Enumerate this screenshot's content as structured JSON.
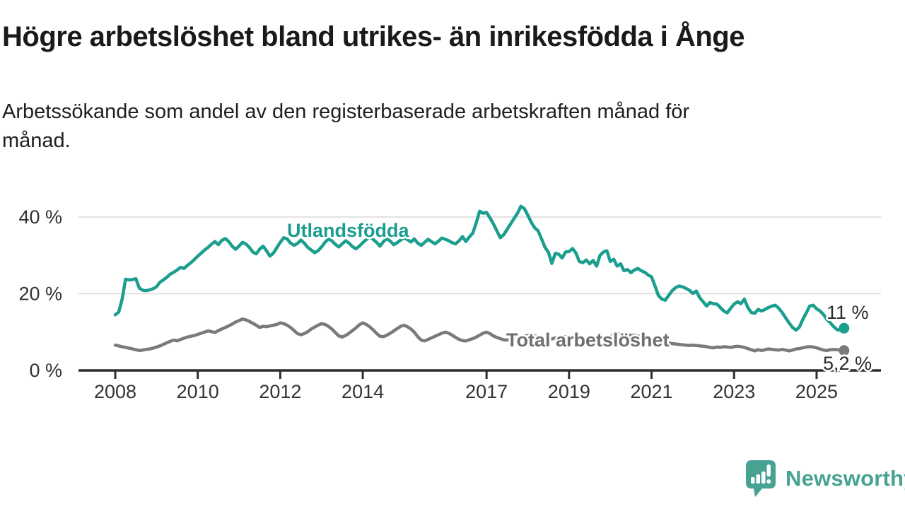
{
  "header": {
    "title": "Högre arbetslöshet bland utrikes- än inrikesfödda i Ånge",
    "subtitle": "Arbetssökande som andel av den registerbaserade arbetskraften månad för månad."
  },
  "footer": {
    "brand": "Newsworthy"
  },
  "colors": {
    "teal": "#1b9e8e",
    "gray": "#7a7a7a",
    "label_gray": "#6f6f6f",
    "grid": "#d9d9d9",
    "axis": "#2e2e2e",
    "tick_label": "#333333",
    "end_label": "#2b2b2b",
    "logo_teal": "#46a292"
  },
  "chart_data": {
    "type": "line",
    "title": "Högre arbetslöshet bland utrikes- än inrikesfödda i Ånge",
    "subtitle": "Arbetssökande som andel av den registerbaserade arbetskraften månad för månad.",
    "unit": "%",
    "frequency": "monthly",
    "x_start": "2008-01",
    "x_end": "2025-09",
    "ylim": [
      0,
      45
    ],
    "grid": "horizontal",
    "legend": "inline-labels",
    "y_ticks": [
      {
        "value": 0,
        "label": "0 %"
      },
      {
        "value": 20,
        "label": "20 %"
      },
      {
        "value": 40,
        "label": "40 %"
      }
    ],
    "x_ticks": [
      {
        "year": 2008,
        "label": "2008"
      },
      {
        "year": 2010,
        "label": "2010"
      },
      {
        "year": 2012,
        "label": "2012"
      },
      {
        "year": 2014,
        "label": "2014"
      },
      {
        "year": 2017,
        "label": "2017"
      },
      {
        "year": 2019,
        "label": "2019"
      },
      {
        "year": 2021,
        "label": "2021"
      },
      {
        "year": 2023,
        "label": "2023"
      },
      {
        "year": 2025,
        "label": "2025"
      }
    ],
    "series": [
      {
        "name": "Utlandsfödda",
        "color": "#1b9e8e",
        "end_label": "11 %",
        "end_value": 11.0,
        "values": [
          14.5,
          15.2,
          18.5,
          23.8,
          23.6,
          23.7,
          23.9,
          21.5,
          20.9,
          20.8,
          21.0,
          21.3,
          21.8,
          23.0,
          23.6,
          24.3,
          25.1,
          25.6,
          26.2,
          26.9,
          26.6,
          27.4,
          28.1,
          28.9,
          29.8,
          30.6,
          31.4,
          32.1,
          32.9,
          33.6,
          32.8,
          33.9,
          34.4,
          33.6,
          32.4,
          31.6,
          32.4,
          33.4,
          33.0,
          32.1,
          30.9,
          30.4,
          31.6,
          32.4,
          31.2,
          29.8,
          30.6,
          32.0,
          33.4,
          34.6,
          34.3,
          33.2,
          32.6,
          33.1,
          34.0,
          33.2,
          32.1,
          31.4,
          30.7,
          31.2,
          32.2,
          33.4,
          34.3,
          33.8,
          32.9,
          32.2,
          33.0,
          33.8,
          33.2,
          32.3,
          31.7,
          32.4,
          33.3,
          34.1,
          34.8,
          34.2,
          33.4,
          32.4,
          33.6,
          34.4,
          33.7,
          32.8,
          33.3,
          34.0,
          34.6,
          34.1,
          33.5,
          34.3,
          33.2,
          32.6,
          33.4,
          34.2,
          33.6,
          33.0,
          33.7,
          34.5,
          34.2,
          33.8,
          33.3,
          33.0,
          33.8,
          34.9,
          33.6,
          34.8,
          35.8,
          38.5,
          41.5,
          41.0,
          41.2,
          39.8,
          38.2,
          36.4,
          34.6,
          35.4,
          36.8,
          38.2,
          39.6,
          41.0,
          42.8,
          42.2,
          40.5,
          38.6,
          37.2,
          36.4,
          34.3,
          32.1,
          30.8,
          27.9,
          30.5,
          30.3,
          29.3,
          30.9,
          31.0,
          31.8,
          30.6,
          28.4,
          28.1,
          28.8,
          27.8,
          28.7,
          27.2,
          30.0,
          30.9,
          31.2,
          28.4,
          29.0,
          27.2,
          27.8,
          26.0,
          26.3,
          25.5,
          26.2,
          26.6,
          26.0,
          25.6,
          24.9,
          24.4,
          22.0,
          19.5,
          18.6,
          18.3,
          19.6,
          20.8,
          21.6,
          22.0,
          21.8,
          21.4,
          20.9,
          20.1,
          20.7,
          19.0,
          17.9,
          16.8,
          17.7,
          17.4,
          17.3,
          16.4,
          15.5,
          15.0,
          16.2,
          17.3,
          17.9,
          17.4,
          18.6,
          16.4,
          15.1,
          14.9,
          15.9,
          15.5,
          15.9,
          16.4,
          16.8,
          17.0,
          16.2,
          15.1,
          13.7,
          12.4,
          11.2,
          10.5,
          11.3,
          13.3,
          15.0,
          16.8,
          17.0,
          16.1,
          15.5,
          14.6,
          13.3,
          12.4,
          11.4,
          10.6,
          10.5,
          11.0
        ]
      },
      {
        "name": "Total arbetslöshet",
        "color": "#7a7a7a",
        "end_label": "5,2 %",
        "end_value": 5.2,
        "values": [
          6.6,
          6.4,
          6.2,
          6.0,
          5.8,
          5.6,
          5.4,
          5.2,
          5.3,
          5.5,
          5.6,
          5.8,
          6.1,
          6.4,
          6.8,
          7.2,
          7.6,
          7.9,
          7.7,
          8.1,
          8.4,
          8.7,
          8.9,
          9.1,
          9.4,
          9.7,
          10.0,
          10.3,
          10.1,
          9.9,
          10.4,
          10.8,
          11.2,
          11.6,
          12.1,
          12.6,
          13.0,
          13.4,
          13.2,
          12.8,
          12.3,
          11.8,
          11.2,
          11.5,
          11.4,
          11.6,
          11.8,
          12.0,
          12.4,
          12.2,
          11.8,
          11.2,
          10.4,
          9.6,
          9.3,
          9.6,
          10.1,
          10.8,
          11.3,
          11.8,
          12.2,
          12.0,
          11.5,
          10.8,
          9.9,
          9.0,
          8.7,
          9.1,
          9.7,
          10.4,
          11.1,
          11.9,
          12.4,
          12.0,
          11.4,
          10.6,
          9.7,
          8.9,
          8.8,
          9.2,
          9.7,
          10.3,
          10.9,
          11.5,
          11.8,
          11.4,
          10.8,
          10.0,
          8.8,
          7.9,
          7.7,
          8.1,
          8.5,
          8.9,
          9.3,
          9.7,
          10.0,
          9.7,
          9.2,
          8.6,
          8.1,
          7.8,
          7.7,
          8.0,
          8.3,
          8.7,
          9.2,
          9.7,
          10.0,
          9.6,
          9.0,
          8.6,
          8.3,
          8.0,
          7.9,
          8.2,
          8.4,
          8.6,
          8.8,
          8.9,
          9.1,
          9.3,
          9.0,
          8.7,
          8.4,
          8.1,
          8.0,
          8.2,
          8.5,
          8.7,
          8.9,
          8.8,
          8.7,
          8.8,
          8.5,
          8.2,
          7.9,
          7.7,
          7.6,
          7.9,
          8.1,
          8.4,
          8.6,
          8.7,
          8.9,
          9.1,
          9.4,
          9.6,
          9.5,
          9.3,
          9.1,
          9.2,
          9.0,
          8.8,
          8.6,
          8.4,
          8.2,
          8.0,
          7.8,
          7.6,
          7.4,
          7.2,
          7.0,
          6.9,
          6.8,
          6.7,
          6.6,
          6.5,
          6.6,
          6.5,
          6.4,
          6.3,
          6.2,
          6.0,
          5.9,
          6.1,
          6.0,
          6.2,
          6.1,
          6.0,
          6.2,
          6.3,
          6.2,
          6.0,
          5.7,
          5.4,
          5.1,
          5.4,
          5.2,
          5.4,
          5.6,
          5.5,
          5.4,
          5.3,
          5.5,
          5.3,
          5.1,
          5.3,
          5.6,
          5.7,
          5.9,
          6.1,
          6.2,
          6.1,
          5.9,
          5.6,
          5.3,
          5.2,
          5.4,
          5.5,
          5.4,
          5.3,
          5.2
        ]
      }
    ]
  }
}
